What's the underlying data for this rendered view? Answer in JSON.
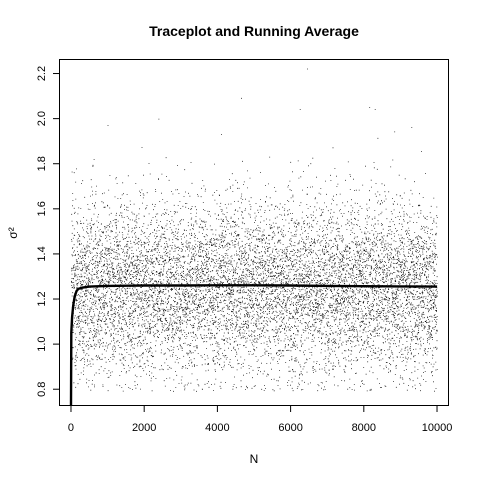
{
  "chart_data": {
    "type": "scatter",
    "title": "Traceplot and Running Average",
    "xlabel": "N",
    "ylabel": "σ²",
    "xlim": [
      -300,
      10300
    ],
    "ylim": [
      0.73,
      2.26
    ],
    "xticks": [
      0,
      2000,
      4000,
      6000,
      8000,
      10000
    ],
    "yticks": [
      0.8,
      1.0,
      1.2,
      1.4,
      1.6,
      1.8,
      2.0,
      2.2
    ],
    "xtick_labels": [
      "0",
      "2000",
      "4000",
      "6000",
      "8000",
      "10000"
    ],
    "ytick_labels": [
      "0.8",
      "1.0",
      "1.2",
      "1.4",
      "1.6",
      "1.8",
      "2.0",
      "2.2"
    ],
    "grid": false,
    "legend": "none",
    "series": [
      {
        "kind": "points",
        "n": 10000,
        "typical_range": [
          0.85,
          1.75
        ],
        "center": 1.25,
        "outliers": [
          [
            4650,
            2.09
          ],
          [
            6450,
            2.22
          ],
          [
            6250,
            2.04
          ],
          [
            8150,
            2.05
          ],
          [
            8300,
            2.04
          ],
          [
            1000,
            1.97
          ],
          [
            4100,
            1.93
          ],
          [
            9300,
            1.96
          ]
        ]
      },
      {
        "kind": "running_average",
        "x": [
          1,
          10,
          30,
          60,
          100,
          150,
          200,
          300,
          500,
          1000,
          2000,
          3000,
          4000,
          5000,
          6000,
          7000,
          8000,
          9000,
          10000
        ],
        "y": [
          0.73,
          1.05,
          1.12,
          1.17,
          1.21,
          1.235,
          1.245,
          1.25,
          1.255,
          1.258,
          1.26,
          1.26,
          1.261,
          1.261,
          1.26,
          1.258,
          1.257,
          1.256,
          1.255
        ]
      }
    ],
    "colors": {
      "points": "#000000",
      "line": "#000000"
    }
  }
}
